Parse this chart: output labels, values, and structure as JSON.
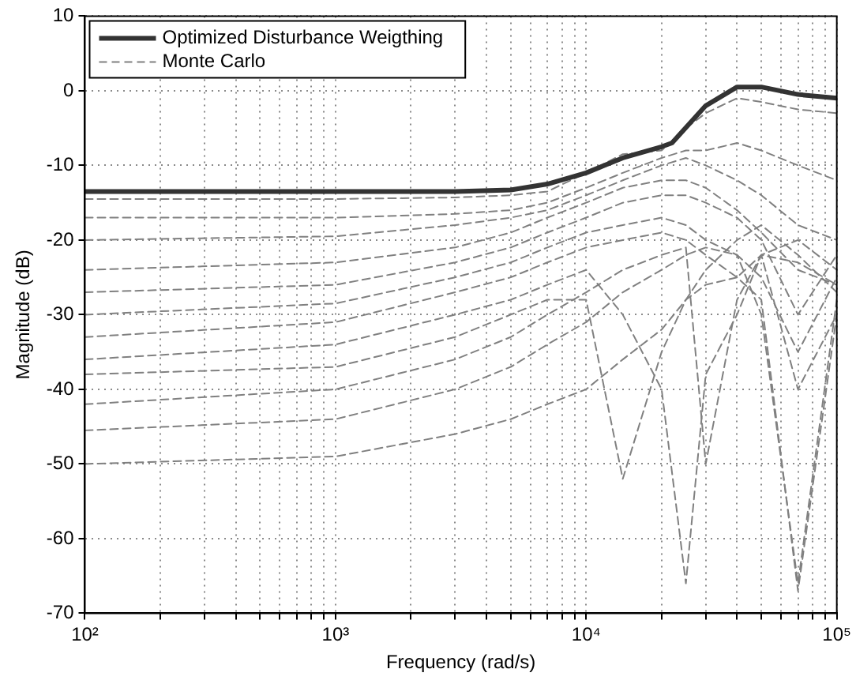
{
  "chart_data": {
    "type": "line",
    "xlabel": "Frequency (rad/s)",
    "ylabel": "Magnitude (dB)",
    "log": "x",
    "grid": true,
    "legend": "top left",
    "xlim": [
      100,
      100000
    ],
    "ylim": [
      -70,
      10
    ],
    "xticks": [
      {
        "value": 100,
        "label": "10²"
      },
      {
        "value": 200,
        "label": null
      },
      {
        "value": 300,
        "label": null
      },
      {
        "value": 400,
        "label": null
      },
      {
        "value": 500,
        "label": null
      },
      {
        "value": 600,
        "label": null
      },
      {
        "value": 700,
        "label": null
      },
      {
        "value": 800,
        "label": null
      },
      {
        "value": 900,
        "label": null
      },
      {
        "value": 1000,
        "label": "10³"
      },
      {
        "value": 2000,
        "label": null
      },
      {
        "value": 3000,
        "label": null
      },
      {
        "value": 4000,
        "label": null
      },
      {
        "value": 5000,
        "label": null
      },
      {
        "value": 6000,
        "label": null
      },
      {
        "value": 7000,
        "label": null
      },
      {
        "value": 8000,
        "label": null
      },
      {
        "value": 9000,
        "label": null
      },
      {
        "value": 10000,
        "label": "10⁴"
      },
      {
        "value": 20000,
        "label": null
      },
      {
        "value": 30000,
        "label": null
      },
      {
        "value": 40000,
        "label": null
      },
      {
        "value": 50000,
        "label": null
      },
      {
        "value": 60000,
        "label": null
      },
      {
        "value": 70000,
        "label": null
      },
      {
        "value": 80000,
        "label": null
      },
      {
        "value": 90000,
        "label": null
      },
      {
        "value": 100000,
        "label": "10⁵"
      }
    ],
    "yticks": [
      -70,
      -60,
      -50,
      -40,
      -30,
      -20,
      -10,
      0,
      10
    ],
    "x": [
      100,
      1000,
      3000,
      5000,
      7000,
      10000,
      14000,
      20000,
      25000,
      30000,
      40000,
      50000,
      70000,
      100000
    ],
    "series": [
      {
        "name": "Optimized Disturbance Weigthing",
        "color": "#333333",
        "line_style": "solid",
        "x": [
          100,
          1000,
          3000,
          5000,
          7000,
          10000,
          14000,
          20000,
          22000,
          30000,
          40000,
          50000,
          70000,
          100000
        ],
        "values": [
          -13.5,
          -13.5,
          -13.5,
          -13.3,
          -12.5,
          -11,
          -9,
          -7.5,
          -7,
          -2,
          0.5,
          0.5,
          -0.5,
          -1
        ]
      },
      {
        "name": "Monte Carlo",
        "color": "#808080",
        "line_style": "dashed",
        "values": [
          -14.5,
          -14.5,
          -14.3,
          -14,
          -13.5,
          -11,
          -8.5,
          -8,
          -5,
          -3,
          -1,
          -1.5,
          -2.5,
          -3
        ]
      },
      {
        "color": "#808080",
        "line_style": "dashed",
        "values": [
          -17,
          -17,
          -16.5,
          -16,
          -15,
          -13,
          -11,
          -9,
          -8,
          -8,
          -7,
          -8,
          -10,
          -12
        ]
      },
      {
        "color": "#808080",
        "line_style": "dashed",
        "values": [
          -20,
          -19.5,
          -18,
          -17,
          -16,
          -14,
          -12,
          -10,
          -9,
          -10,
          -12,
          -14,
          -18,
          -20
        ]
      },
      {
        "color": "#808080",
        "line_style": "dashed",
        "values": [
          -24,
          -23,
          -21,
          -19,
          -17,
          -15,
          -13,
          -12,
          -12,
          -13,
          -16,
          -19,
          -24,
          -26
        ]
      },
      {
        "color": "#808080",
        "line_style": "dashed",
        "values": [
          -27,
          -26,
          -23,
          -21,
          -19,
          -17,
          -15,
          -14,
          -14,
          -15,
          -17,
          -20,
          -30,
          -22
        ]
      },
      {
        "color": "#808080",
        "line_style": "dashed",
        "values": [
          -30,
          -28.5,
          -25,
          -23,
          -21,
          -19,
          -18,
          -17,
          -18,
          -20,
          -22,
          -30,
          -66,
          -28
        ]
      },
      {
        "color": "#808080",
        "line_style": "dashed",
        "values": [
          -33,
          -31,
          -27,
          -25,
          -23,
          -21,
          -20,
          -19,
          -20,
          -22,
          -25,
          -22,
          -40,
          -30
        ]
      },
      {
        "color": "#808080",
        "line_style": "dashed",
        "values": [
          -36,
          -34,
          -30,
          -28,
          -26,
          -24,
          -30,
          -40,
          -66,
          -38,
          -30,
          -22,
          -20,
          -24
        ]
      },
      {
        "color": "#808080",
        "line_style": "dashed",
        "values": [
          -38,
          -37,
          -33,
          -30,
          -28,
          -28,
          -52,
          -35,
          -28,
          -24,
          -20,
          -18,
          -22,
          -27
        ]
      },
      {
        "color": "#808080",
        "line_style": "dashed",
        "values": [
          -42,
          -40,
          -36,
          -33,
          -30,
          -27,
          -24,
          -22,
          -21,
          -50,
          -28,
          -22,
          -23,
          -26
        ]
      },
      {
        "color": "#808080",
        "line_style": "dashed",
        "values": [
          -45.5,
          -44,
          -40,
          -37,
          -34,
          -31,
          -27,
          -24,
          -22,
          -21,
          -22,
          -25,
          -35,
          -25
        ]
      },
      {
        "color": "#808080",
        "line_style": "dashed",
        "values": [
          -50,
          -49,
          -46,
          -44,
          -42,
          -40,
          -36,
          -32,
          -28,
          -26,
          -25,
          -28,
          -67,
          -30
        ]
      }
    ]
  }
}
